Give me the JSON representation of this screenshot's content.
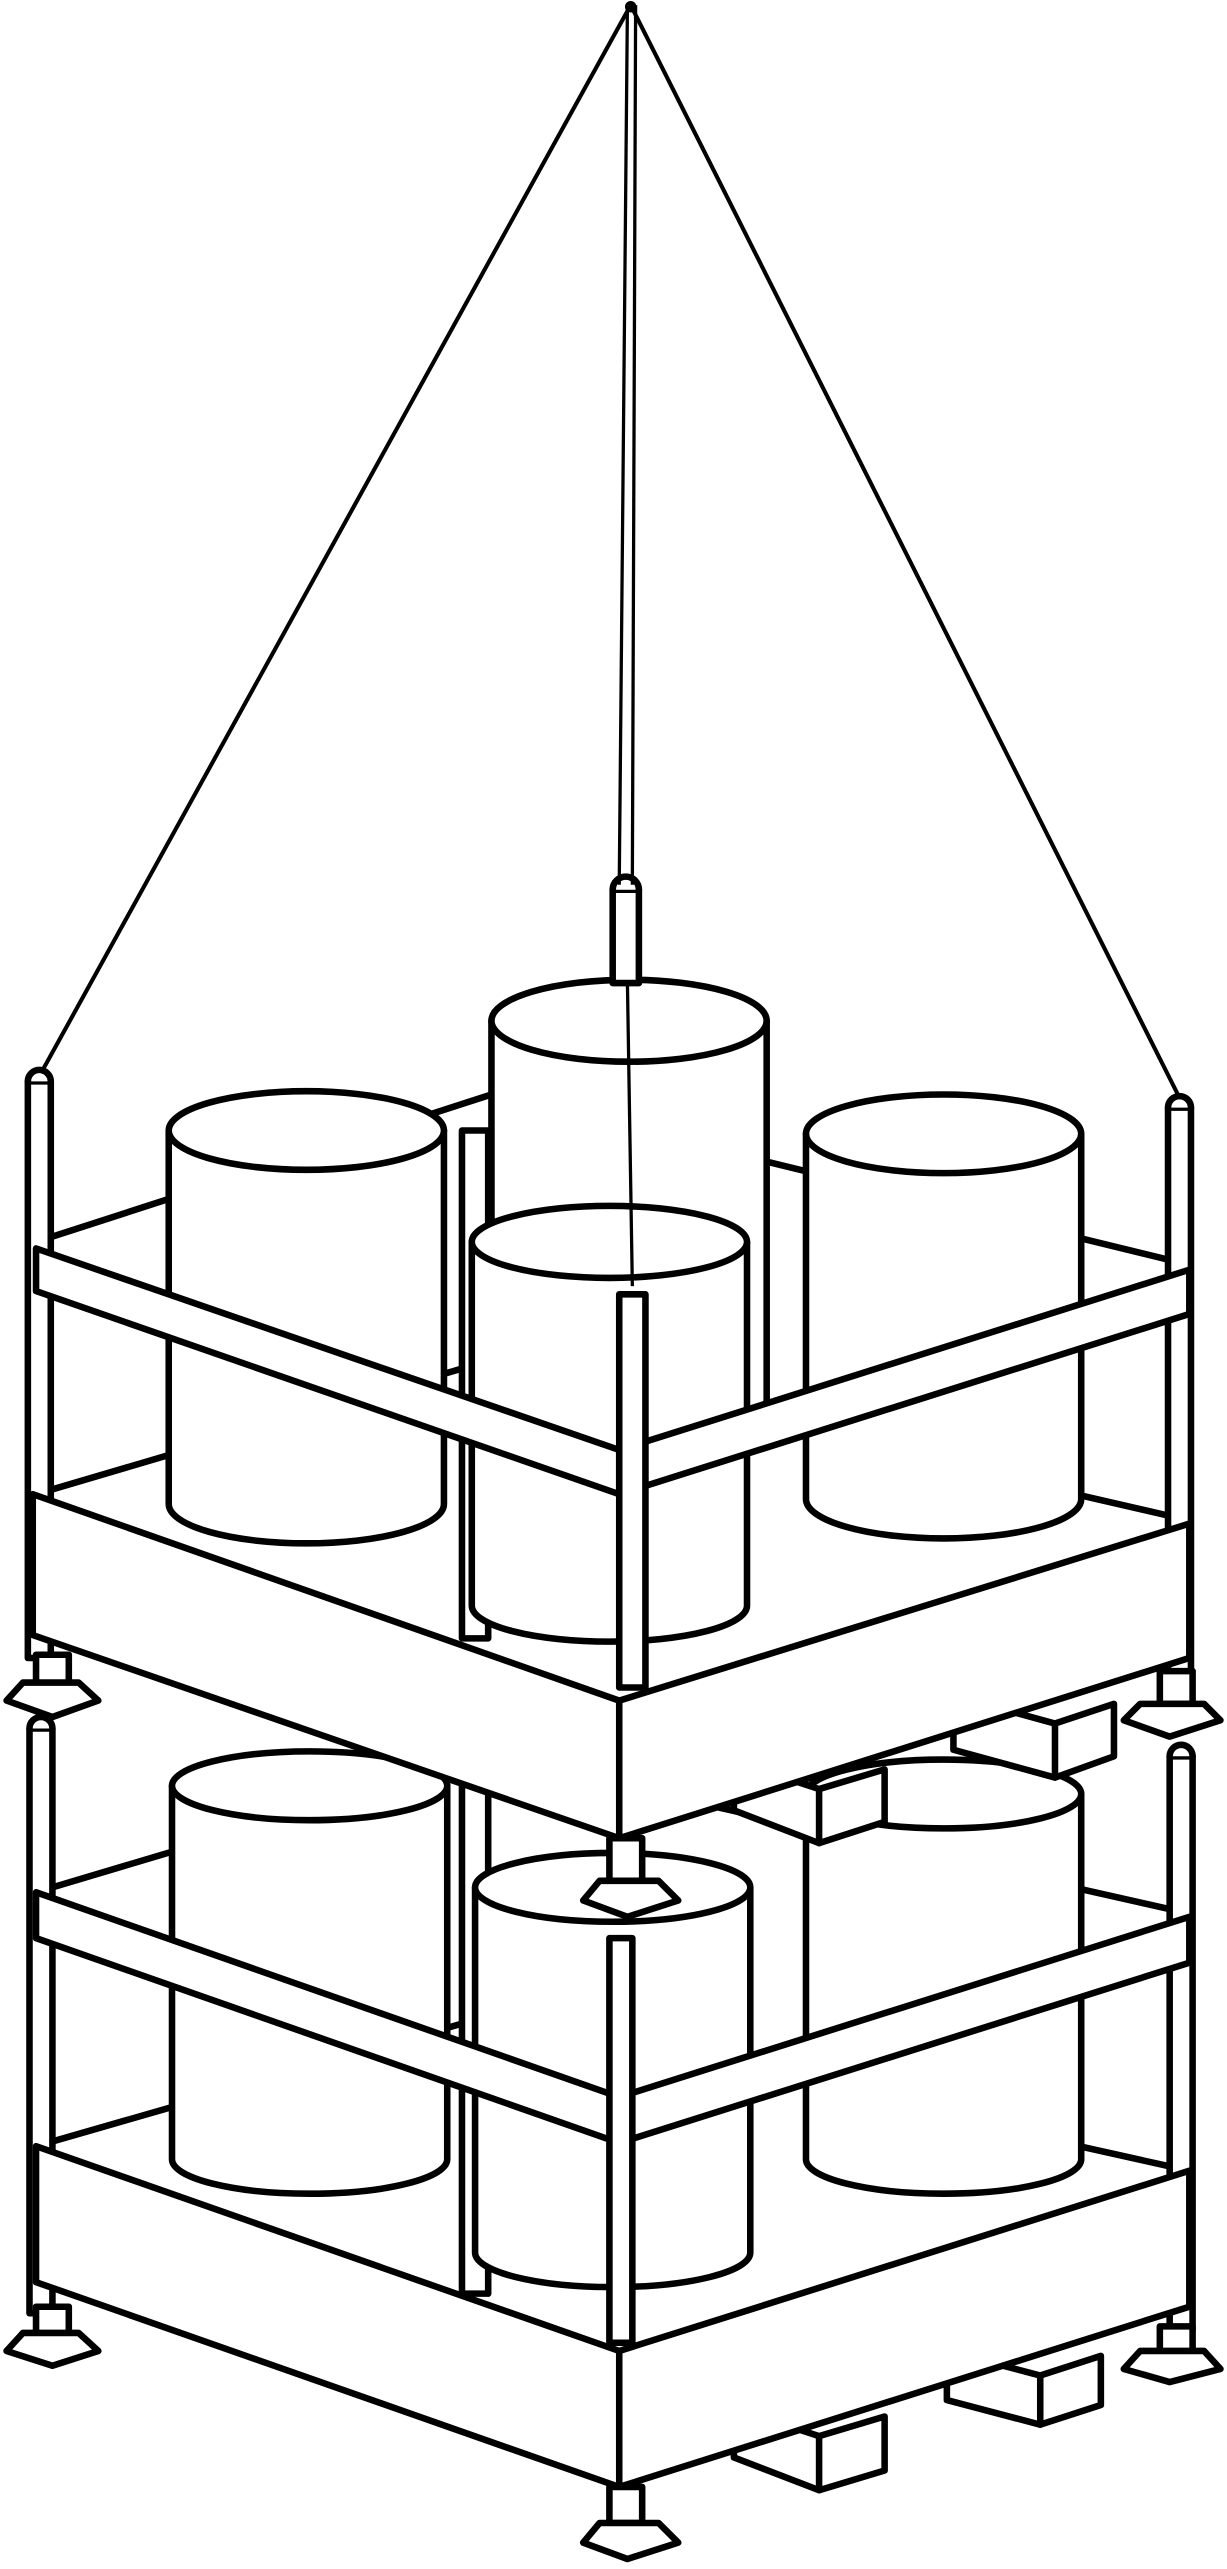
{
  "diagram": {
    "subject": "lifting-frame-with-cylindrical-drums",
    "stroke_color": "#000000",
    "background_color": "#ffffff",
    "tiers": [
      {
        "name": "upper-tier",
        "drum_count": 4
      },
      {
        "name": "lower-tier",
        "drum_count": 4
      }
    ],
    "sling_leg_count": 3,
    "lifting_post_count": 1
  }
}
